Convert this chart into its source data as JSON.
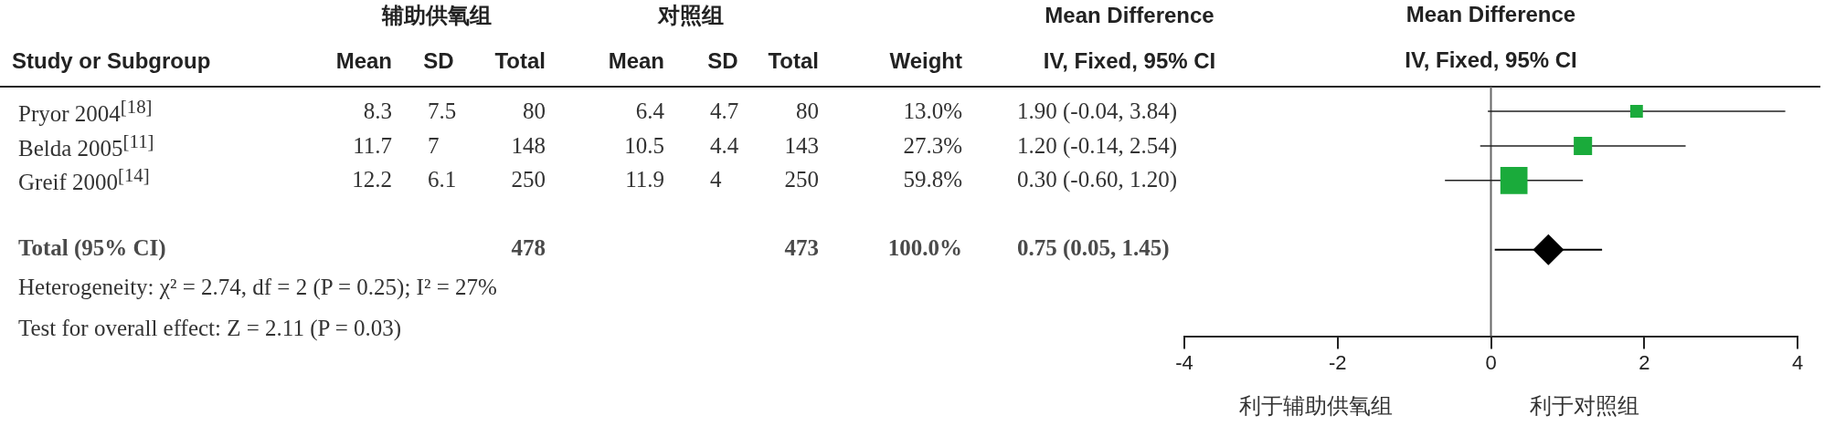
{
  "chart_data": [
    {
      "type": "other",
      "categories": [
        "Study or Subgroup",
        "Mean",
        "SD",
        "Total",
        "Mean",
        "SD",
        "Total",
        "Weight",
        "IV, Fixed, 95% CI"
      ],
      "y_categories": [
        "Pryor 2004$^{[18]}$",
        "Belda 2005$^{[11]}$",
        "Greif 2000$^{[14]}$",
        null,
        "Total (95% CI)"
      ],
      "cell_labels": [
        [
          "8.3",
          "7.5",
          "80",
          "6.4",
          "4.7",
          "80",
          "13.0%",
          "1.90 (-0.04, 3.84)"
        ],
        [
          "11.7",
          "7",
          "148",
          "10.5",
          "4.4",
          "143",
          "27.3%",
          "1.20 (-0.14, 2.54)"
        ],
        [
          "12.2",
          "6.1",
          "250",
          "11.9",
          "4",
          "250",
          "59.8%",
          "0.30 (-0.60, 1.20)"
        ],
        [
          null,
          null,
          null,
          null,
          null,
          null,
          null,
          null
        ],
        [
          null,
          null,
          "478",
          null,
          null,
          "473",
          "100.0%",
          "0.75 (0.05, 1.45)"
        ]
      ],
      "annotations": [
        "辅助供氧组",
        "对照组",
        "Mean Difference",
        "Heterogeneity: χ² = 2.74, df = 2 (P = 0.25); I² = 27%",
        "Test for overall effect: Z = 2.11 (P = 0.03)"
      ]
    },
    {
      "type": "scatter",
      "orientation": "horizontal",
      "title": "Mean Difference",
      "subtitle": "IV, Fixed, 95% CI",
      "categories": [
        null,
        null,
        null,
        null,
        null,
        null,
        null
      ],
      "xlim": [
        -4,
        4
      ],
      "xticks": [
        -4,
        -2,
        0,
        2,
        4
      ],
      "tick_labels": "x",
      "grid": false,
      "annotations": [
        "利于辅助供氧组",
        "利于对照组"
      ],
      "ref_lines": [
        {
          "axis": "x",
          "value": 0,
          "color": "#666666"
        }
      ],
      "series": [
        {
          "type": "bubble",
          "color": "#1aab3b",
          "marker": "square",
          "values": [
            1.9,
            1.2,
            0.3,
            null,
            null,
            null,
            null
          ],
          "errors": [
            [
              -0.04,
              3.84
            ],
            [
              -0.14,
              2.54
            ],
            [
              -0.6,
              1.2
            ],
            null,
            null,
            null,
            null
          ],
          "sizes": [
            0.217,
            0.457,
            1,
            null,
            null,
            null,
            null
          ]
        },
        {
          "type": "scatter",
          "color": "#000000",
          "marker": "diamond",
          "values": [
            null,
            null,
            null,
            null,
            0.75,
            null,
            null
          ],
          "errors": [
            null,
            null,
            null,
            null,
            [
              0.05,
              1.45
            ],
            null,
            null
          ]
        }
      ]
    }
  ]
}
